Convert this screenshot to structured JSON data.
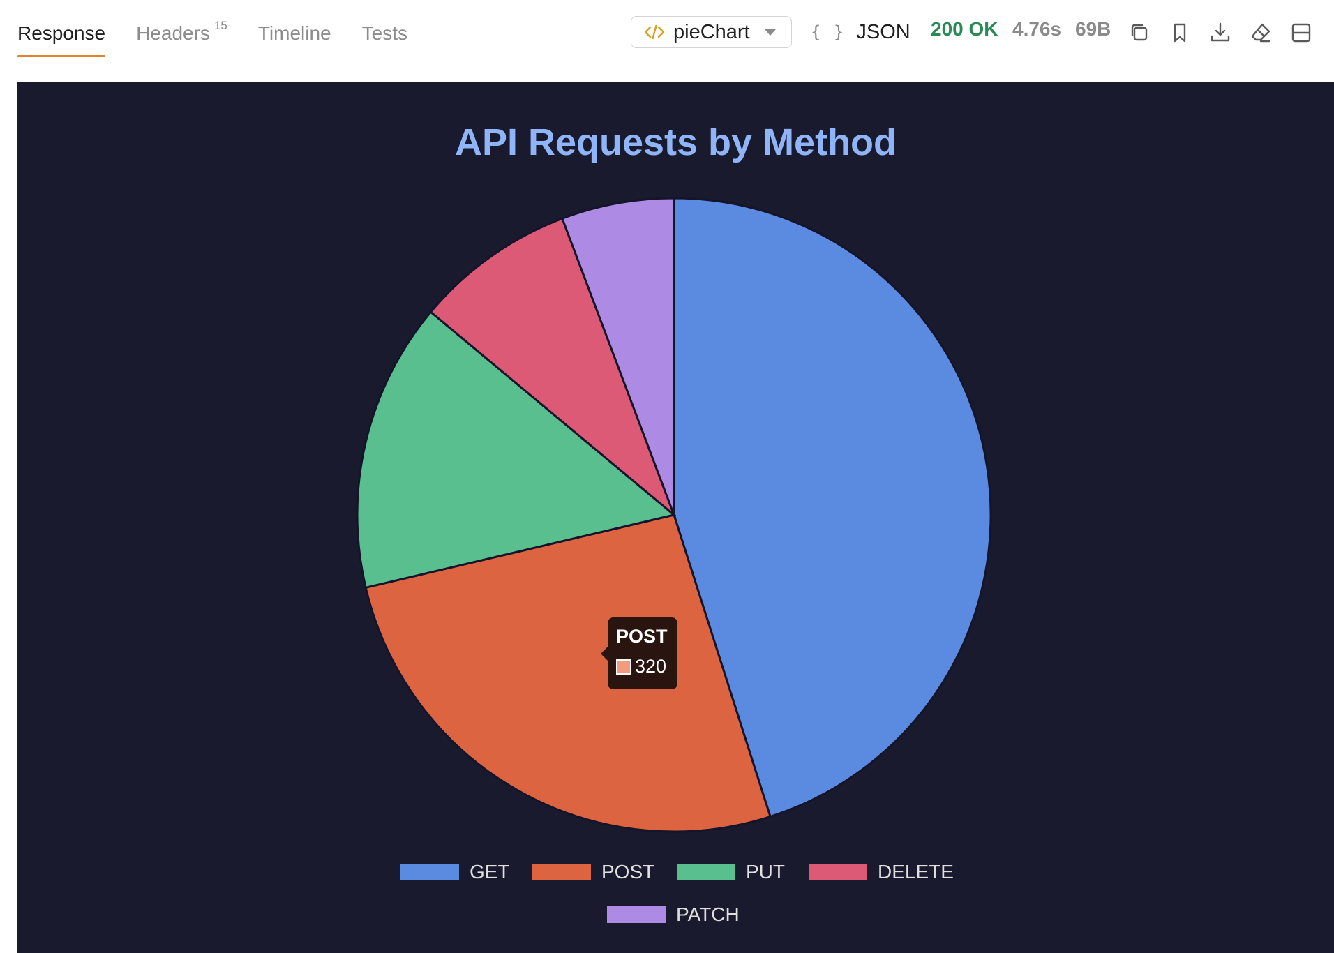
{
  "tabs": [
    {
      "label": "Response",
      "active": true
    },
    {
      "label": "Headers",
      "badge": "15",
      "active": false
    },
    {
      "label": "Timeline",
      "active": false
    },
    {
      "label": "Tests",
      "active": false
    }
  ],
  "preview_mode": {
    "label": "pieChart"
  },
  "format_toggle": {
    "label": "JSON"
  },
  "response_meta": {
    "status": "200 OK",
    "time": "4.76s",
    "size": "69B"
  },
  "toolbar_icons": [
    "copy-icon",
    "bookmark-icon",
    "download-icon",
    "eraser-icon",
    "layout-icon"
  ],
  "colors": {
    "status_ok": "#2a8a55",
    "active_tab_underline": "#e0832d",
    "panel_bg": "#1a1a2e"
  },
  "chart_data": {
    "type": "pie",
    "title": "API Requests by Method",
    "categories": [
      "GET",
      "POST",
      "PUT",
      "DELETE",
      "PATCH"
    ],
    "values": [
      550,
      320,
      180,
      100,
      70
    ],
    "colors": [
      "#5b8be0",
      "#dd6440",
      "#59bf8f",
      "#dd5a76",
      "#ad8ae3"
    ],
    "legend_position": "bottom",
    "tooltip": {
      "label": "POST",
      "value": "320",
      "color": "#f29c7f"
    }
  }
}
